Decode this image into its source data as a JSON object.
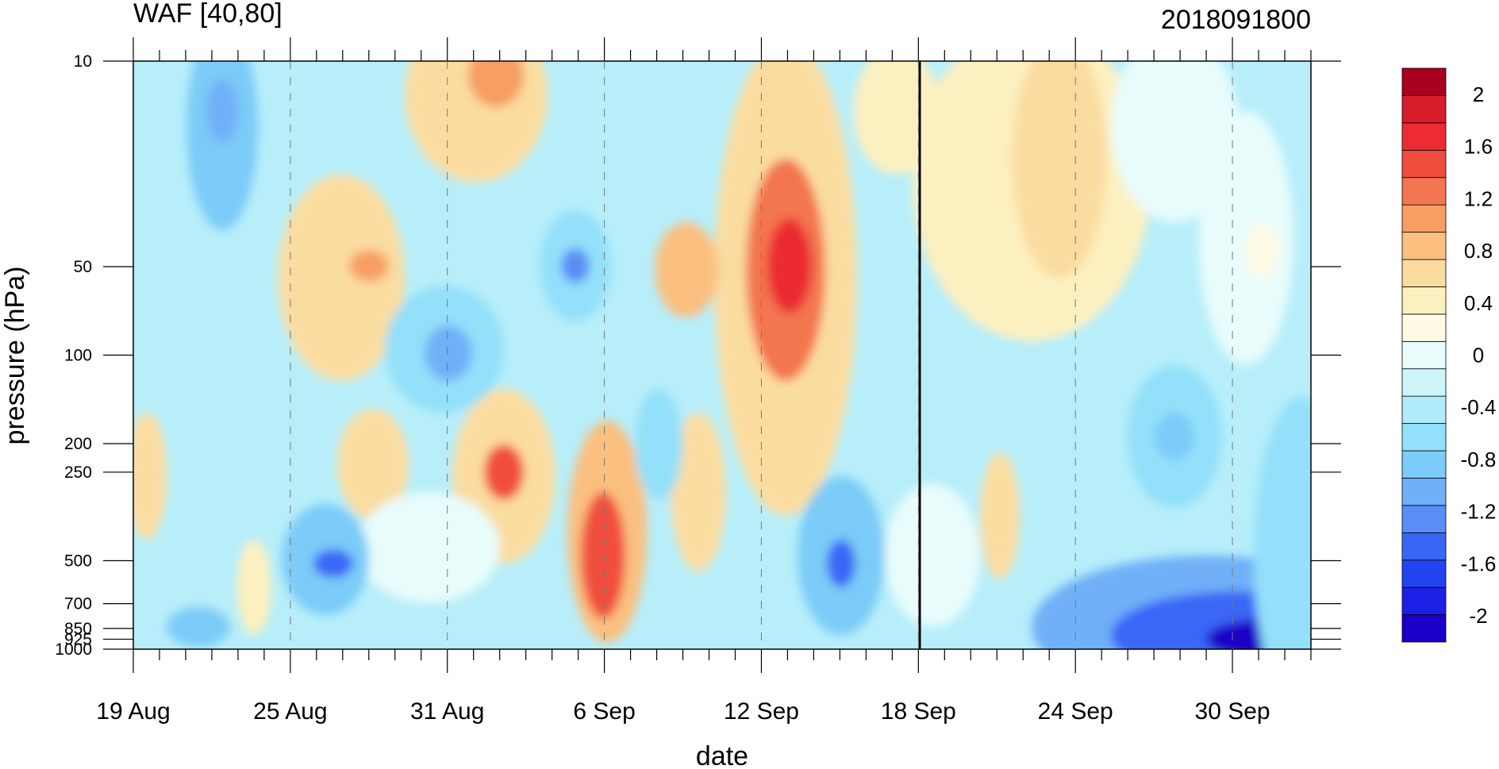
{
  "title_left": "WAF [40,80]",
  "title_right": "2018091800",
  "chart_data": {
    "type": "heatmap",
    "title": "WAF [40,80]",
    "subtitle": "2018091800",
    "xlabel": "date",
    "ylabel": "pressure (hPa)",
    "x_ticks": [
      "19 Aug",
      "25 Aug",
      "31 Aug",
      "6 Sep",
      "12 Sep",
      "18 Sep",
      "24 Sep",
      "30 Sep"
    ],
    "x_range": [
      "19 Aug",
      "4 Oct"
    ],
    "y_ticks": [
      10,
      50,
      100,
      200,
      250,
      500,
      700,
      850,
      925,
      1000
    ],
    "y_scale": "log",
    "y_range": [
      1000,
      10
    ],
    "marker_line_date": "18 Sep",
    "colorbar": {
      "labels": [
        "2",
        "1.6",
        "1.2",
        "0.8",
        "0.4",
        "0",
        "-0.4",
        "-0.8",
        "-1.2",
        "-1.6",
        "-2"
      ],
      "min": -2.2,
      "max": 2.2,
      "step": 0.2,
      "colors": [
        "#1a00c8",
        "#1e1fe6",
        "#2244f0",
        "#3a66f6",
        "#5a8ef6",
        "#6fb0f8",
        "#7ccbf8",
        "#93e0fa",
        "#b1ecfa",
        "#ceF5fa",
        "#e8fcfc",
        "#fffbe6",
        "#fdf0c0",
        "#fbdca0",
        "#fbc080",
        "#f79e64",
        "#f37650",
        "#f14d3e",
        "#ec2c32",
        "#d81c2c",
        "#a8001e"
      ]
    },
    "series": []
  }
}
